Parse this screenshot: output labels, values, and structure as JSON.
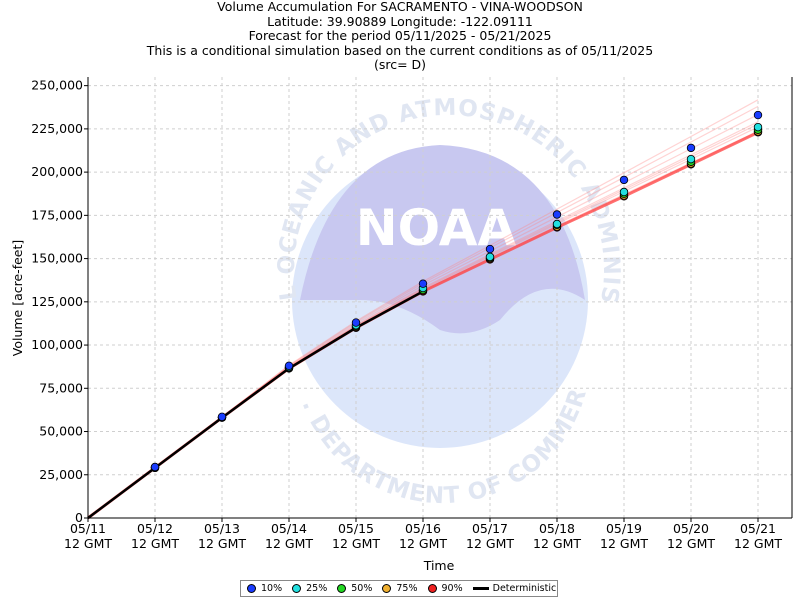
{
  "header": {
    "line1": "Volume Accumulation For SACRAMENTO - VINA-WOODSON",
    "line2": "Latitude: 39.90889 Longitude: -122.09111",
    "line3": "Forecast for the period 05/11/2025 - 05/21/2025",
    "line4": "This is a conditional simulation based on the current conditions as of 05/11/2025",
    "line5": "(src= D)"
  },
  "watermark": {
    "arc_top": "NATIONAL OCEANIC AND ATMOSPHERIC ADMINISTRATION",
    "arc_bottom": "U.S. DEPARTMENT OF COMMERCE",
    "logo_text": "NOAA"
  },
  "colors": {
    "p10": "#1a3cff",
    "p25": "#22e0e0",
    "p50": "#22d822",
    "p75": "#f0b030",
    "p90": "#ee2020",
    "deterministic": "#000000",
    "ensemble_trace": "#ff8080"
  },
  "chart_data": {
    "type": "line",
    "xlabel": "Time",
    "ylabel": "Volume [acre-feet]",
    "ylim": [
      0,
      255000
    ],
    "grid": true,
    "legend_position": "bottom-center",
    "x": [
      0,
      1,
      2,
      3,
      4,
      5,
      6,
      7,
      8,
      9,
      10
    ],
    "x_tick_labels": [
      [
        "05/11",
        "12 GMT"
      ],
      [
        "05/12",
        "12 GMT"
      ],
      [
        "05/13",
        "12 GMT"
      ],
      [
        "05/14",
        "12 GMT"
      ],
      [
        "05/15",
        "12 GMT"
      ],
      [
        "05/16",
        "12 GMT"
      ],
      [
        "05/17",
        "12 GMT"
      ],
      [
        "05/18",
        "12 GMT"
      ],
      [
        "05/19",
        "12 GMT"
      ],
      [
        "05/20",
        "12 GMT"
      ],
      [
        "05/21",
        "12 GMT"
      ]
    ],
    "y_ticks": [
      0,
      25000,
      50000,
      75000,
      100000,
      125000,
      150000,
      175000,
      200000,
      225000,
      250000
    ],
    "y_tick_labels": [
      "0",
      "25,000",
      "50,000",
      "75,000",
      "100,000",
      "125,000",
      "150,000",
      "175,000",
      "200,000",
      "225,000",
      "250,000"
    ],
    "series": [
      {
        "name": "10%",
        "color_key": "p10",
        "x": [
          1,
          2,
          3,
          4,
          5,
          6,
          7,
          8,
          9,
          10
        ],
        "values": [
          29500,
          58500,
          88000,
          113000,
          135500,
          155500,
          175500,
          195500,
          214000,
          233000
        ]
      },
      {
        "name": "25%",
        "color_key": "p25",
        "x": [
          1,
          2,
          3,
          4,
          5,
          6,
          7,
          8,
          9,
          10
        ],
        "values": [
          29200,
          58300,
          87300,
          111500,
          133000,
          151000,
          170000,
          188500,
          207500,
          226000
        ]
      },
      {
        "name": "50%",
        "color_key": "p50",
        "x": [
          1,
          2,
          3,
          4,
          5,
          6,
          7,
          8,
          9,
          10
        ],
        "values": [
          29100,
          58200,
          87000,
          111000,
          132000,
          150500,
          169500,
          187500,
          206000,
          224500
        ]
      },
      {
        "name": "75%",
        "color_key": "p75",
        "x": [
          1,
          2,
          3,
          4,
          5,
          6,
          7,
          8,
          9,
          10
        ],
        "values": [
          29000,
          58100,
          86700,
          110500,
          131500,
          150000,
          168500,
          186500,
          205000,
          223500
        ]
      },
      {
        "name": "90%",
        "color_key": "p90",
        "x": [
          1,
          2,
          3,
          4,
          5,
          6,
          7,
          8,
          9,
          10
        ],
        "values": [
          29000,
          58000,
          86500,
          110000,
          131000,
          149500,
          168000,
          186000,
          204500,
          223000
        ]
      }
    ],
    "deterministic": {
      "name": "Deterministic",
      "x": [
        0,
        1,
        2,
        3,
        4,
        5
      ],
      "values": [
        0,
        29000,
        58000,
        86500,
        110000,
        131000
      ]
    },
    "ensemble_traces": [
      [
        0,
        29000,
        58000,
        86600,
        110200,
        131500,
        150300,
        168900,
        187100,
        205300,
        223700
      ],
      [
        0,
        29000,
        58000,
        86800,
        110800,
        132200,
        151200,
        170100,
        188800,
        207400,
        226100
      ],
      [
        0,
        29100,
        58200,
        87200,
        111500,
        133200,
        152500,
        171800,
        190900,
        210000,
        229100
      ],
      [
        0,
        29100,
        58300,
        87600,
        112400,
        134500,
        154300,
        174100,
        193800,
        213500,
        233300
      ],
      [
        0,
        29200,
        58400,
        88000,
        113200,
        135800,
        156200,
        176600,
        197000,
        217400,
        238000
      ],
      [
        0,
        29200,
        58500,
        88300,
        113800,
        136800,
        157600,
        178600,
        199600,
        220600,
        241800
      ],
      [
        0,
        29000,
        58000,
        86500,
        110000,
        131000,
        149500,
        168000,
        186300,
        204600,
        223000
      ],
      [
        0,
        29100,
        58100,
        87000,
        111200,
        132700,
        151800,
        170900,
        189900,
        208800,
        227800
      ]
    ]
  },
  "legend": {
    "items": [
      {
        "label": "10%",
        "color_key": "p10"
      },
      {
        "label": "25%",
        "color_key": "p25"
      },
      {
        "label": "50%",
        "color_key": "p50"
      },
      {
        "label": "75%",
        "color_key": "p75"
      },
      {
        "label": "90%",
        "color_key": "p90"
      }
    ],
    "deterministic_label": "Deterministic"
  }
}
